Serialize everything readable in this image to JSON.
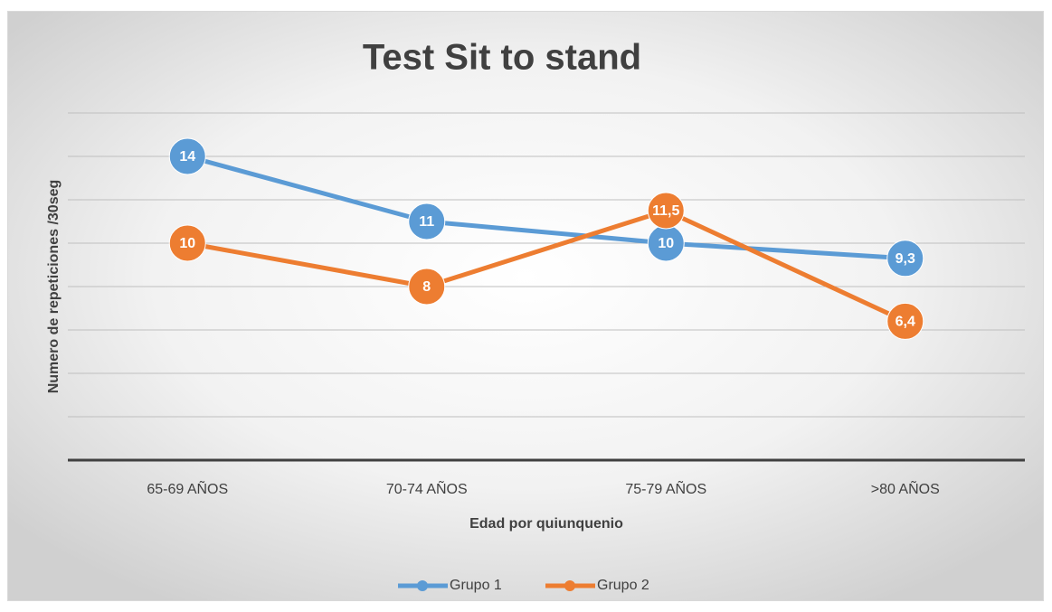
{
  "chart_data": {
    "type": "line",
    "title": "Test  Sit to stand",
    "x_label": "Edad por quiunquenio",
    "y_label": "Numero de repeticiones /30seg",
    "categories": [
      "65-69 AÑOS",
      "70-74 AÑOS",
      "75-79 AÑOS",
      ">80 AÑOS"
    ],
    "series": [
      {
        "name": "Grupo 1",
        "color": "#5b9bd5",
        "values": [
          14,
          11,
          10,
          9.3
        ],
        "value_labels": [
          "14",
          "11",
          "10",
          "9,3"
        ]
      },
      {
        "name": "Grupo 2",
        "color": "#ed7d31",
        "values": [
          10,
          8,
          11.5,
          6.4
        ],
        "value_labels": [
          "10",
          "8",
          "11,5",
          "6,4"
        ]
      }
    ],
    "ylim": [
      0,
      16
    ],
    "yticks": [
      0,
      2,
      4,
      6,
      8,
      10,
      12,
      14,
      16
    ],
    "grid": true,
    "legend": "bottom"
  }
}
